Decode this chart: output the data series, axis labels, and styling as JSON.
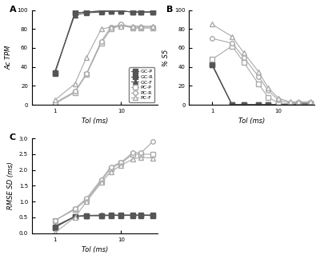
{
  "tol_A": [
    0.5,
    1,
    2,
    3,
    5,
    7,
    10,
    15,
    20,
    30
  ],
  "A_GCP": [
    null,
    33,
    97,
    98,
    99,
    99,
    99,
    98,
    98,
    98
  ],
  "A_GCR": [
    null,
    34,
    97,
    98,
    99,
    99,
    99,
    98,
    98,
    98
  ],
  "A_GCF": [
    null,
    35,
    95,
    97,
    98,
    99,
    99,
    98,
    98,
    98
  ],
  "A_PCP": [
    null,
    1,
    13,
    32,
    65,
    80,
    84,
    81,
    81,
    81
  ],
  "A_PCR": [
    null,
    2,
    14,
    33,
    67,
    82,
    85,
    82,
    82,
    82
  ],
  "A_PCF": [
    null,
    5,
    22,
    50,
    80,
    82,
    83,
    83,
    83,
    83
  ],
  "tol_B": [
    0.5,
    1,
    2,
    3,
    5,
    7,
    10,
    15,
    20,
    30
  ],
  "B_GCP": [
    null,
    42,
    0,
    0,
    0,
    0,
    0,
    0,
    1,
    1
  ],
  "B_GCR": [
    null,
    42,
    0,
    0,
    0,
    0,
    0,
    0,
    1,
    1
  ],
  "B_GCF": [
    null,
    43,
    0,
    0,
    0,
    0,
    0,
    0,
    1,
    1
  ],
  "B_PCP": [
    null,
    48,
    62,
    45,
    22,
    8,
    2,
    1,
    2,
    2
  ],
  "B_PCR": [
    null,
    70,
    65,
    50,
    30,
    15,
    5,
    2,
    2,
    2
  ],
  "B_PCF": [
    null,
    85,
    72,
    55,
    35,
    18,
    7,
    3,
    3,
    3
  ],
  "tol_C": [
    0.5,
    1,
    2,
    3,
    5,
    7,
    10,
    15,
    20,
    30
  ],
  "C_GCP": [
    null,
    0.18,
    0.52,
    0.55,
    0.55,
    0.56,
    0.56,
    0.56,
    0.56,
    0.56
  ],
  "C_GCR": [
    null,
    0.2,
    0.53,
    0.56,
    0.56,
    0.57,
    0.57,
    0.57,
    0.57,
    0.57
  ],
  "C_GCF": [
    null,
    0.22,
    0.53,
    0.56,
    0.57,
    0.57,
    0.57,
    0.57,
    0.57,
    0.57
  ],
  "C_PCP": [
    null,
    0.4,
    0.75,
    1.05,
    1.65,
    2.05,
    2.22,
    2.5,
    2.5,
    2.5
  ],
  "C_PCR": [
    null,
    0.4,
    0.78,
    1.1,
    1.7,
    2.1,
    2.25,
    2.55,
    2.55,
    2.9
  ],
  "C_PCF": [
    null,
    0.01,
    0.5,
    1.0,
    1.6,
    1.95,
    2.15,
    2.35,
    2.4,
    2.38
  ],
  "legend_labels": [
    "GC-P",
    "GC-R",
    "GC-F",
    "PC-P",
    "PC-R",
    "PC-F"
  ],
  "xlabel": "Tol (ms)",
  "ylabel_A": "Ac TPM",
  "ylabel_B": "% S5",
  "ylabel_C": "RMSE SD (ms)",
  "ylim_A": [
    0,
    100
  ],
  "ylim_B": [
    0,
    100
  ],
  "ylim_C": [
    0.0,
    3.0
  ],
  "bg_color": "#ffffff"
}
